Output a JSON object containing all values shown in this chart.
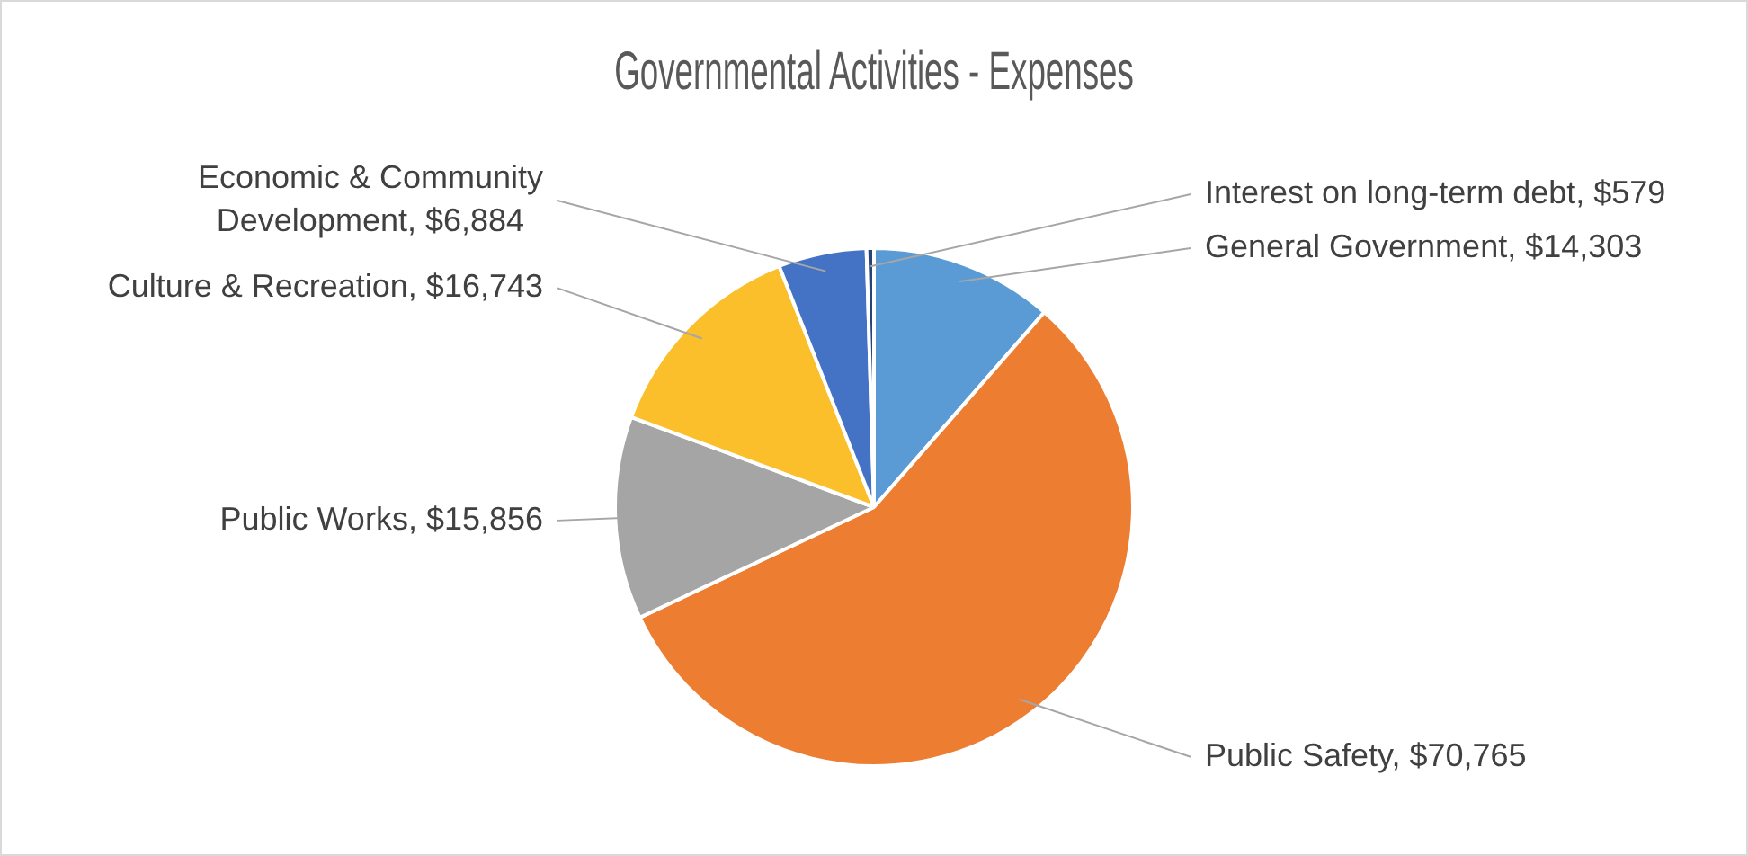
{
  "chart_data": {
    "type": "pie",
    "title": "Governmental Activities - Expenses",
    "categories": [
      "General Government",
      "Public Safety",
      "Public Works",
      "Culture & Recreation",
      "Economic & Community Development",
      "Interest on long-term debt"
    ],
    "values": [
      14303,
      70765,
      15856,
      16743,
      6884,
      579
    ],
    "value_labels": [
      "$14,303",
      "$70,765",
      "$15,856",
      "$16,743",
      "$6,884",
      "$579"
    ],
    "colors": [
      "#5b9bd5",
      "#ed7d31",
      "#a5a5a5",
      "#fbbf2c",
      "#4472c4",
      "#264478"
    ],
    "legend": false
  }
}
